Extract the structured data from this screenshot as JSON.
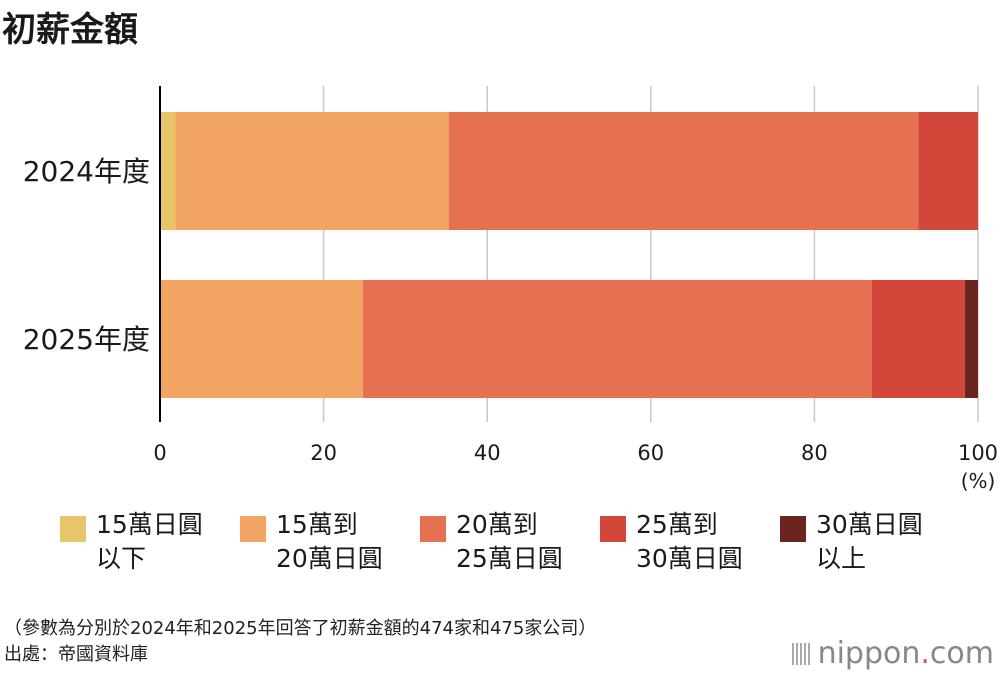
{
  "title": "初薪金額",
  "chart_data": {
    "type": "bar",
    "orientation": "horizontal",
    "stacked": true,
    "categories": [
      "2024年度",
      "2025年度"
    ],
    "series": [
      {
        "name": "15萬日圓以下",
        "name_lines": [
          "15萬日圓",
          "以下"
        ],
        "color": "#e8c46a",
        "values": [
          1.9,
          0
        ]
      },
      {
        "name": "15萬到20萬日圓",
        "name_lines": [
          "15萬到",
          "20萬日圓"
        ],
        "color": "#f2a463",
        "values": [
          33.4,
          24.8
        ]
      },
      {
        "name": "20萬到25萬日圓",
        "name_lines": [
          "20萬到",
          "25萬日圓"
        ],
        "color": "#e67152",
        "values": [
          57.4,
          62.2
        ]
      },
      {
        "name": "25萬到30萬日圓",
        "name_lines": [
          "25萬到",
          "30萬日圓"
        ],
        "color": "#d2473a",
        "values": [
          7.3,
          11.4
        ]
      },
      {
        "name": "30萬日圓以上",
        "name_lines": [
          "30萬日圓",
          "以上"
        ],
        "color": "#6b2420",
        "values": [
          0,
          1.6
        ]
      }
    ],
    "xlim": [
      0,
      100
    ],
    "xticks": [
      "0",
      "20",
      "40",
      "60",
      "80",
      "100"
    ],
    "xlabel": "(%)",
    "grid": true,
    "legend": "bottom"
  },
  "note": {
    "line1": "（參數為分別於2024年和2025年回答了初薪金額的474家和475家公司）",
    "line2": "出處：帝國資料庫"
  },
  "logo": {
    "brand": "nippon",
    "dot": ".",
    "suffix": "com"
  }
}
